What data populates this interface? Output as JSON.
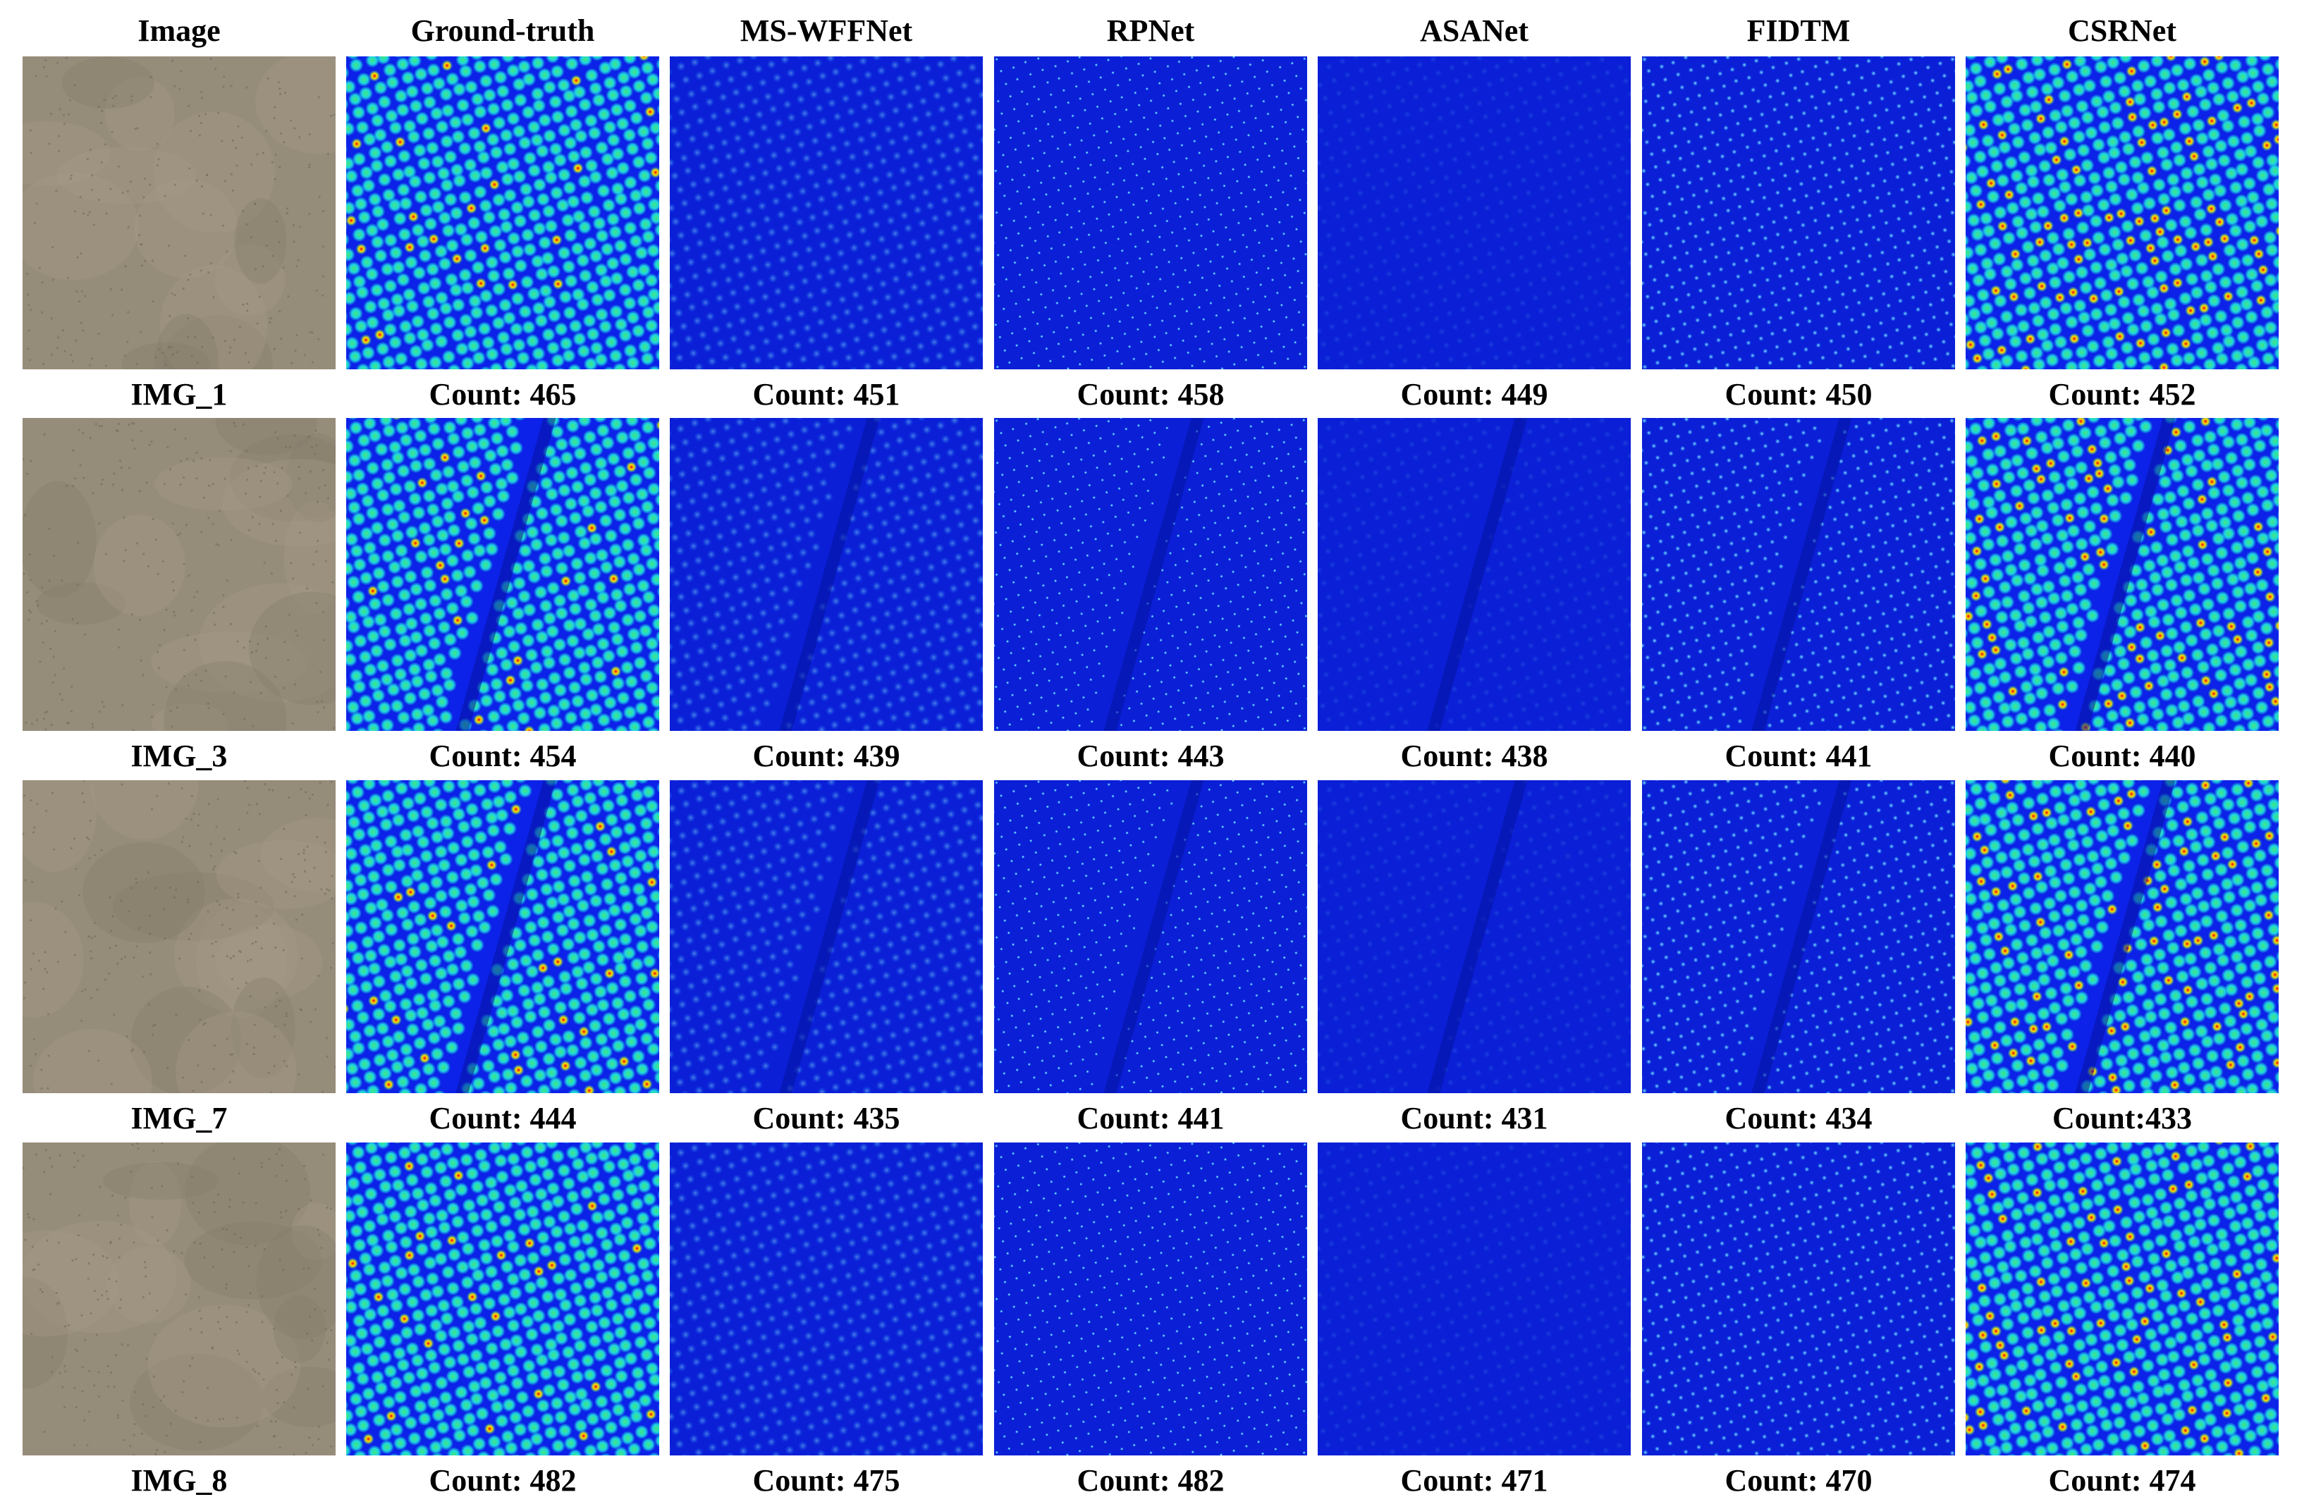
{
  "column_headers": [
    "Image",
    "Ground-truth",
    "MS-WFFNet",
    "RPNet",
    "ASANet",
    "FIDTM",
    "CSRNet"
  ],
  "rows": [
    {
      "image_id": "IMG_1",
      "counts": [
        "Count: 465",
        "Count: 451",
        "Count: 458",
        "Count: 449",
        "Count: 450",
        "Count: 452"
      ],
      "has_gap": false
    },
    {
      "image_id": "IMG_3",
      "counts": [
        "Count: 454",
        "Count: 439",
        "Count: 443",
        "Count: 438",
        "Count: 441",
        "Count: 440"
      ],
      "has_gap": true
    },
    {
      "image_id": "IMG_7",
      "counts": [
        "Count: 444",
        "Count: 435",
        "Count: 441",
        "Count: 431",
        "Count: 434",
        "Count:433"
      ],
      "has_gap": true
    },
    {
      "image_id": "IMG_8",
      "counts": [
        "Count: 482",
        "Count: 475",
        "Count: 482",
        "Count: 471",
        "Count: 470",
        "Count: 474"
      ],
      "has_gap": false
    }
  ],
  "panel_styles": {
    "Image": "photo",
    "Ground-truth": "heatmap-blobs",
    "MS-WFFNet": "faint-blobs",
    "RPNet": "sharp-dots",
    "ASANet": "very-faint",
    "FIDTM": "small-dots",
    "CSRNet": "heatmap-blobs-hot"
  },
  "colors": {
    "photo_bg": "#968c7a",
    "heat_bg": "#0a1fd6",
    "heat_dark": "#0612a0",
    "heat_cyan": "#1fd6e0",
    "heat_green": "#3fe87a",
    "heat_yellow": "#ffe600",
    "heat_red": "#e01010"
  }
}
